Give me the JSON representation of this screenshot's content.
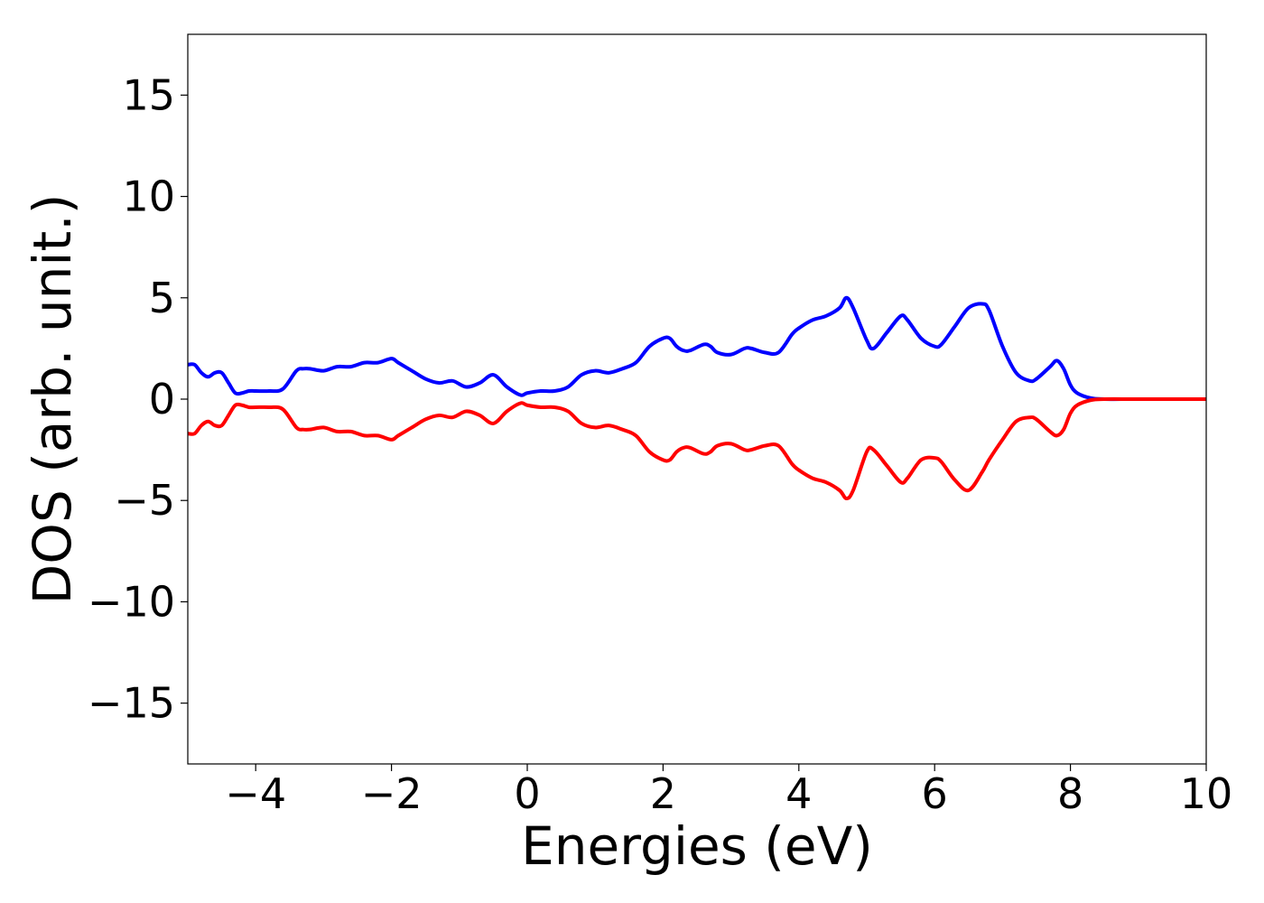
{
  "chart_data": {
    "type": "line",
    "title": "",
    "xlabel": "Energies (eV)",
    "ylabel": "DOS (arb. unit.)",
    "xlim": [
      -5,
      10
    ],
    "ylim": [
      -18,
      18
    ],
    "xticks": [
      -4,
      -2,
      0,
      2,
      4,
      6,
      8,
      10
    ],
    "xtick_labels": [
      "−4",
      "−2",
      "0",
      "2",
      "4",
      "6",
      "8",
      "10"
    ],
    "yticks": [
      15,
      10,
      5,
      0,
      -5,
      -10,
      -15
    ],
    "ytick_labels": [
      "15",
      "10",
      "5",
      "0",
      "−5",
      "−10",
      "−15"
    ],
    "grid": false,
    "legend": "none",
    "series": [
      {
        "color": "#0000ff",
        "x": [
          -5.0,
          -4.9,
          -4.8,
          -4.7,
          -4.6,
          -4.5,
          -4.4,
          -4.3,
          -4.2,
          -4.1,
          -4.0,
          -3.8,
          -3.6,
          -3.4,
          -3.3,
          -3.2,
          -3.0,
          -2.8,
          -2.6,
          -2.4,
          -2.2,
          -2.0,
          -1.9,
          -1.7,
          -1.5,
          -1.3,
          -1.1,
          -0.9,
          -0.7,
          -0.5,
          -0.3,
          -0.1,
          0.0,
          0.2,
          0.4,
          0.6,
          0.8,
          1.0,
          1.2,
          1.4,
          1.6,
          1.8,
          2.0,
          2.1,
          2.2,
          2.3,
          2.4,
          2.6,
          2.7,
          2.8,
          3.0,
          3.2,
          3.3,
          3.5,
          3.7,
          3.9,
          4.0,
          4.2,
          4.4,
          4.6,
          4.7,
          4.8,
          5.0,
          5.1,
          5.3,
          5.5,
          5.6,
          5.8,
          6.0,
          6.1,
          6.3,
          6.5,
          6.7,
          6.8,
          7.0,
          7.2,
          7.4,
          7.5,
          7.7,
          7.8,
          7.9,
          8.0,
          8.1,
          8.3,
          8.5,
          9.0,
          10.0
        ],
        "y": [
          1.7,
          1.7,
          1.3,
          1.1,
          1.3,
          1.3,
          0.8,
          0.3,
          0.3,
          0.4,
          0.4,
          0.4,
          0.5,
          1.4,
          1.5,
          1.5,
          1.4,
          1.6,
          1.6,
          1.8,
          1.8,
          2.0,
          1.8,
          1.4,
          1.0,
          0.8,
          0.9,
          0.6,
          0.8,
          1.2,
          0.6,
          0.2,
          0.3,
          0.4,
          0.4,
          0.6,
          1.2,
          1.4,
          1.3,
          1.5,
          1.8,
          2.6,
          3.0,
          3.0,
          2.6,
          2.4,
          2.4,
          2.7,
          2.6,
          2.3,
          2.2,
          2.5,
          2.5,
          2.3,
          2.3,
          3.2,
          3.5,
          3.9,
          4.1,
          4.5,
          5.0,
          4.5,
          2.9,
          2.5,
          3.3,
          4.1,
          3.9,
          3.0,
          2.6,
          2.7,
          3.6,
          4.5,
          4.7,
          4.4,
          2.6,
          1.3,
          0.9,
          1.0,
          1.6,
          1.9,
          1.5,
          0.7,
          0.3,
          0.05,
          0.0,
          0.0,
          0.0
        ]
      },
      {
        "color": "#ff0000",
        "x": [
          -5.0,
          -4.9,
          -4.8,
          -4.7,
          -4.6,
          -4.5,
          -4.4,
          -4.3,
          -4.2,
          -4.1,
          -4.0,
          -3.8,
          -3.6,
          -3.4,
          -3.3,
          -3.2,
          -3.0,
          -2.8,
          -2.6,
          -2.4,
          -2.2,
          -2.0,
          -1.9,
          -1.7,
          -1.5,
          -1.3,
          -1.1,
          -0.9,
          -0.7,
          -0.5,
          -0.3,
          -0.1,
          0.0,
          0.2,
          0.4,
          0.6,
          0.8,
          1.0,
          1.2,
          1.4,
          1.6,
          1.8,
          2.0,
          2.1,
          2.2,
          2.3,
          2.4,
          2.6,
          2.7,
          2.8,
          3.0,
          3.2,
          3.3,
          3.5,
          3.7,
          3.9,
          4.0,
          4.2,
          4.4,
          4.6,
          4.7,
          4.8,
          5.0,
          5.1,
          5.3,
          5.5,
          5.6,
          5.8,
          6.0,
          6.1,
          6.3,
          6.5,
          6.7,
          6.8,
          7.0,
          7.2,
          7.4,
          7.5,
          7.7,
          7.8,
          7.9,
          8.0,
          8.1,
          8.3,
          8.5,
          9.0,
          10.0
        ],
        "y": [
          -1.7,
          -1.7,
          -1.3,
          -1.1,
          -1.3,
          -1.3,
          -0.8,
          -0.3,
          -0.3,
          -0.4,
          -0.4,
          -0.4,
          -0.5,
          -1.4,
          -1.5,
          -1.5,
          -1.4,
          -1.6,
          -1.6,
          -1.8,
          -1.8,
          -2.0,
          -1.8,
          -1.4,
          -1.0,
          -0.8,
          -0.9,
          -0.6,
          -0.8,
          -1.2,
          -0.6,
          -0.2,
          -0.3,
          -0.4,
          -0.4,
          -0.6,
          -1.2,
          -1.4,
          -1.3,
          -1.5,
          -1.8,
          -2.6,
          -3.0,
          -3.0,
          -2.6,
          -2.4,
          -2.4,
          -2.7,
          -2.6,
          -2.3,
          -2.2,
          -2.5,
          -2.5,
          -2.3,
          -2.3,
          -3.2,
          -3.5,
          -3.9,
          -4.1,
          -4.5,
          -4.9,
          -4.5,
          -2.6,
          -2.5,
          -3.3,
          -4.1,
          -3.9,
          -3.0,
          -2.9,
          -3.1,
          -4.0,
          -4.5,
          -3.6,
          -3.0,
          -2.0,
          -1.1,
          -0.9,
          -1.0,
          -1.6,
          -1.8,
          -1.5,
          -0.7,
          -0.3,
          -0.05,
          0.0,
          0.0,
          0.0
        ]
      }
    ]
  }
}
